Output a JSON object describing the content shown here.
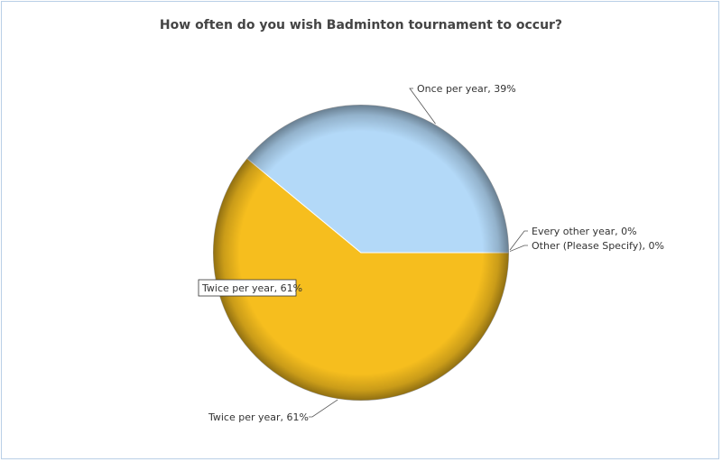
{
  "chart_data": {
    "type": "pie",
    "title": "How often do you wish Badminton tournament to occur?",
    "slices": [
      {
        "label": "Twice per year",
        "value": 61,
        "color": "#f6be1e",
        "shade": "#8a6a05",
        "callout": "Twice per year, 61%"
      },
      {
        "label": "Once per year",
        "value": 39,
        "color": "#b3d9f8",
        "shade": "#6f8aa3",
        "callout": "Once per year, 39%"
      },
      {
        "label": "Every other year",
        "value": 0,
        "color": "#9bd36b",
        "shade": "#5d8a3a",
        "callout": "Every other year, 0%"
      },
      {
        "label": "Other (Please Specify)",
        "value": 0,
        "color": "#e07070",
        "shade": "#8a3a3a",
        "callout": "Other (Please Specify), 0%"
      }
    ],
    "tooltip": "Twice per year, 61%"
  }
}
